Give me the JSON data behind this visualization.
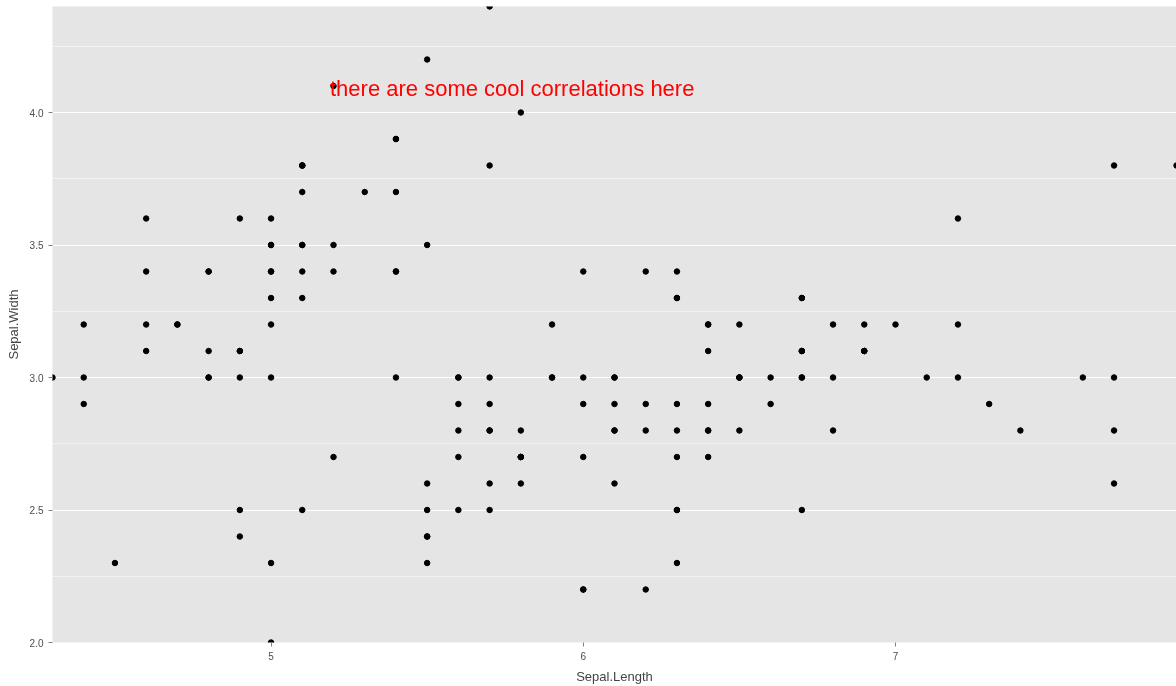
{
  "chart_data": {
    "type": "scatter",
    "xlabel": "Sepal.Length",
    "ylabel": "Sepal.Width",
    "xlim": [
      4.3,
      7.9
    ],
    "ylim": [
      2.0,
      4.4
    ],
    "xticks": [
      5,
      6,
      7
    ],
    "yticks": [
      {
        "value": 2.0,
        "label": "2.0"
      },
      {
        "value": 2.5,
        "label": "2.5"
      },
      {
        "value": 3.0,
        "label": "3.0"
      },
      {
        "value": 3.5,
        "label": "3.5"
      },
      {
        "value": 4.0,
        "label": "4.0"
      }
    ],
    "grid": true,
    "marker": "circle",
    "annotations": [
      "there are some cool correlations here"
    ],
    "series": [
      {
        "color": "#000000",
        "x": [
          5.1,
          4.9,
          4.7,
          4.6,
          5.0,
          5.4,
          4.6,
          5.0,
          4.4,
          4.9,
          5.4,
          4.8,
          4.8,
          4.3,
          5.8,
          5.7,
          5.4,
          5.1,
          5.7,
          5.1,
          5.4,
          5.1,
          4.6,
          5.1,
          4.8,
          5.0,
          5.0,
          5.2,
          5.2,
          4.7,
          4.8,
          5.4,
          5.2,
          5.5,
          4.9,
          5.0,
          5.5,
          4.9,
          4.4,
          5.1,
          5.0,
          4.5,
          4.4,
          5.0,
          5.1,
          4.8,
          5.1,
          4.6,
          5.3,
          5.0,
          7.0,
          6.4,
          6.9,
          5.5,
          6.5,
          5.7,
          6.3,
          4.9,
          6.6,
          5.2,
          5.0,
          5.9,
          6.0,
          6.1,
          5.6,
          6.7,
          5.6,
          5.8,
          6.2,
          5.6,
          5.9,
          6.1,
          6.3,
          6.1,
          6.4,
          6.6,
          6.8,
          6.7,
          6.0,
          5.7,
          5.5,
          5.5,
          5.8,
          6.0,
          5.4,
          6.0,
          6.7,
          6.3,
          5.6,
          5.5,
          5.5,
          6.1,
          5.8,
          5.0,
          5.6,
          5.7,
          5.7,
          6.2,
          5.1,
          5.7,
          6.3,
          5.8,
          7.1,
          6.3,
          6.5,
          7.6,
          4.9,
          7.3,
          6.7,
          7.2,
          6.5,
          6.4,
          6.8,
          5.7,
          5.8,
          6.4,
          6.5,
          7.7,
          7.7,
          6.0,
          6.9,
          5.6,
          7.7,
          6.3,
          6.7,
          7.2,
          6.2,
          6.1,
          6.4,
          7.2,
          7.4,
          7.9,
          6.4,
          6.3,
          6.1,
          7.7,
          6.3,
          6.4,
          6.0,
          6.9,
          6.7,
          6.9,
          5.8,
          6.8,
          6.7,
          6.7,
          6.3,
          6.5,
          6.2,
          5.9
        ],
        "values": [
          3.5,
          3.0,
          3.2,
          3.1,
          3.6,
          3.9,
          3.4,
          3.4,
          2.9,
          3.1,
          3.7,
          3.4,
          3.0,
          3.0,
          4.0,
          4.4,
          3.9,
          3.5,
          3.8,
          3.8,
          3.4,
          3.7,
          3.6,
          3.3,
          3.4,
          3.0,
          3.4,
          3.5,
          3.4,
          3.2,
          3.1,
          3.4,
          4.1,
          4.2,
          3.1,
          3.2,
          3.5,
          3.6,
          3.0,
          3.4,
          3.5,
          2.3,
          3.2,
          3.5,
          3.8,
          3.0,
          3.8,
          3.2,
          3.7,
          3.3,
          3.2,
          3.2,
          3.1,
          2.3,
          2.8,
          2.8,
          3.3,
          2.4,
          2.9,
          2.7,
          2.0,
          3.0,
          2.2,
          2.9,
          2.9,
          3.1,
          3.0,
          2.7,
          2.2,
          2.5,
          3.2,
          2.8,
          2.5,
          2.8,
          2.9,
          3.0,
          2.8,
          3.0,
          2.9,
          2.6,
          2.4,
          2.4,
          2.7,
          2.7,
          3.0,
          3.4,
          3.1,
          2.3,
          3.0,
          2.5,
          2.6,
          3.0,
          2.6,
          2.3,
          2.7,
          3.0,
          2.9,
          2.9,
          2.5,
          2.8,
          3.3,
          2.7,
          3.0,
          2.9,
          3.0,
          3.0,
          2.5,
          2.9,
          2.5,
          3.6,
          3.2,
          2.7,
          3.0,
          2.5,
          2.8,
          3.2,
          3.0,
          3.8,
          2.6,
          2.2,
          3.2,
          2.8,
          2.8,
          2.7,
          3.3,
          3.2,
          2.8,
          3.0,
          2.8,
          3.0,
          2.8,
          3.8,
          2.8,
          2.8,
          2.6,
          3.0,
          3.4,
          3.1,
          3.0,
          3.1,
          3.1,
          3.1,
          2.7,
          3.2,
          3.3,
          3.0,
          2.5,
          3.0,
          3.4,
          3.0
        ]
      }
    ]
  }
}
